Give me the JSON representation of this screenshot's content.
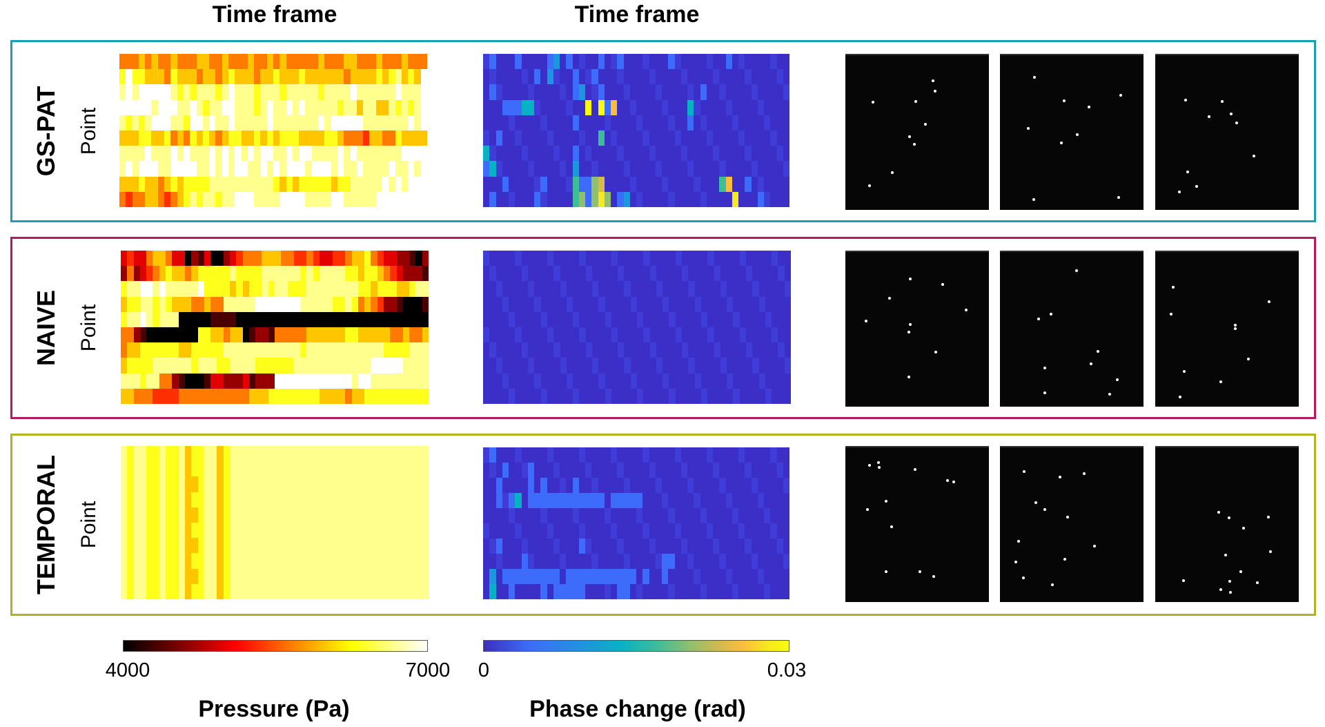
{
  "column_titles": [
    "Time frame",
    "Time frame"
  ],
  "colors": {
    "gs_pat": "#1a9fb0",
    "naive": "#b5195e",
    "temporal": "#b3b322"
  },
  "chart_data": {
    "type": "heatmap",
    "encoding": "each row string = one point; each char = quantized level 0-9 mapped linearly onto the colorbar range",
    "row_axis_label": "Point",
    "col_axis_label": "Time frame",
    "methods": [
      "GS-PAT",
      "NAIVE",
      "TEMPORAL"
    ],
    "pressure": {
      "title": "Pressure (Pa)",
      "range": [
        4000,
        7000
      ],
      "tick_labels": [
        "4000",
        "7000"
      ],
      "colormap": "hot",
      "GS-PAT": [
        "555656556555665565556556565555565556655565556555",
        "797766657666566567666566766676666665666676786769",
        "898999998787888789888788878888878888988888898889",
        "999998999889878899888789889898888878868866878789",
        "878789998879989889888889888888898999998888888989",
        "666776675657676567766767677766667765554665576666",
        "888898889898889898989899889899888898988888889999",
        "898999889999889898998898989998999898898888988989",
        "666766567677778888888888767677777677888889898999",
        "545566545678788788999888899998888998888899999999"
      ],
      "NAIVE": [
        "343356653302130023455566655445433445667543322102",
        "252345676656777778777788888878788887767765432221",
        "788998988888977776767787887778888888877677766788",
        "677887876665565588888999999988888778756542210001",
        "788987888000001111000000000000000000000000000000",
        "552100000000776656601221555556666667766666556556",
        "566777777667777788888888888878888888888887777888",
        "677778888887888778888777777888888888888999998888",
        "888788552100013322231222999999999999899888888888",
        "665554444555555555556667777777766665667777777777"
      ],
      "TEMPORAL": [
        "878877877867788678888888888888888888888888888888",
        "878877877867788678888888888888888888888888888888",
        "878877877866788678888888888888888888888888888888",
        "878877877867788678888888888888888888888888888888",
        "878877877866788678888888888888888888888888888888",
        "878877877867788678888888888888888888888888888888",
        "878877877866788678888888888888888888888888888888",
        "878877877867788678888888888888888888888888888888",
        "878877877866788678888888888888888888888888888888",
        "878877877867788678888888888888888888888888888888"
      ]
    },
    "phase": {
      "title": "Phase change (rad)",
      "range": [
        0,
        0.03
      ],
      "tick_labels": [
        "0",
        "0.03"
      ],
      "colormap": "parula",
      "GS-PAT": [
        "010001000012010000100100000001000000001000000000",
        "000000001020001001000000000000000000000000000000",
        "010000000000001200100000000000000010000000000000",
        "000111330000000090917000000000003000000000000000",
        "000000000000001000000000000000001000000000000000",
        "001000000000000000400000000000000000000000000000",
        "300000000000001000000000000000000000000000000000",
        "130000000000002000000000000000000000000000000000",
        "000100000100004115600000000000000000047001000000",
        "010000001000004515850120000000000000000800010000"
      ],
      "NAIVE": [
        "000000000000000000000000000000000000000000000000",
        "000000000000000000000000000000000000000000000000",
        "000000000000000000000000000000000000000000000000",
        "000000000000000000000000000000000000000000000000",
        "000000000000000000000000000000000000000000000000",
        "000000000000000000000000000000000000000000000000",
        "000000000000000000000000000000000000000000000000",
        "000000000000000000000000000000000000000000000000",
        "000000000000000000000000000000000000000000000000",
        "000000000000000000000000000000000000000000000000"
      ],
      "TEMPORAL": [
        "010000000000000000000000000000000000000000000000",
        "000100010000000000000000000000000000000000000000",
        "001000010100001000000000000000000000000000000000",
        "001013011111111111101111100000000000000000000000",
        "000000000000000000000000000000000000000000000000",
        "000000000000000000000000000000000000000000000000",
        "001000000000000100000000000000000000000000000000",
        "000000100000000000000000000011000000000000000000",
        "020111111111011111111111010010000000000000000000",
        "030010000101111100000110000000000000000000000000"
      ]
    }
  }
}
